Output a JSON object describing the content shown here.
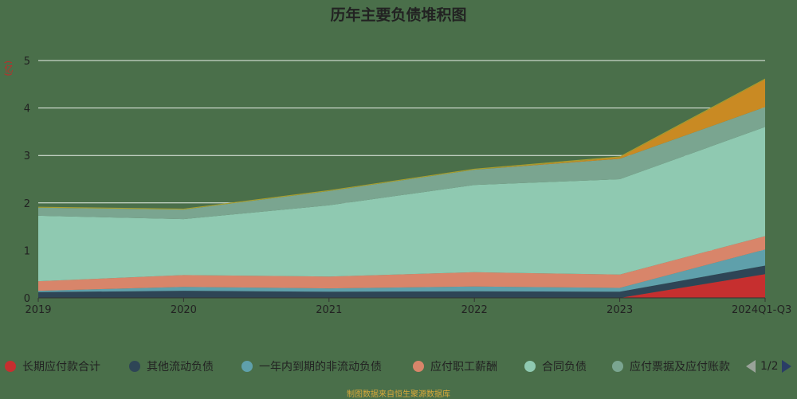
{
  "chart_data": {
    "type": "area",
    "title": "历年主要负债堆积图",
    "ylabel": "(亿)",
    "xlabel": "",
    "categories": [
      "2019",
      "2020",
      "2021",
      "2022",
      "2023",
      "2024Q1-Q3"
    ],
    "ylim": [
      0,
      5
    ],
    "yticks": [
      0,
      1,
      2,
      3,
      4,
      5
    ],
    "grid": true,
    "legend_position": "bottom",
    "stacked": true,
    "series": [
      {
        "name": "长期应付款合计",
        "color": "#c62f2f",
        "values": [
          0,
          0,
          0,
          0,
          0,
          0.5
        ]
      },
      {
        "name": "其他流动负债",
        "color": "#2e4556",
        "values": [
          0.12,
          0.15,
          0.13,
          0.14,
          0.13,
          0.18
        ]
      },
      {
        "name": "一年内到期的非流动负债",
        "color": "#5fa0ab",
        "values": [
          0.03,
          0.08,
          0.07,
          0.1,
          0.08,
          0.34
        ]
      },
      {
        "name": "应付职工薪酬",
        "color": "#d8856a",
        "values": [
          0.2,
          0.25,
          0.25,
          0.3,
          0.28,
          0.28
        ]
      },
      {
        "name": "合同负债",
        "color": "#8fc9b1",
        "values": [
          1.38,
          1.18,
          1.5,
          1.84,
          2.01,
          2.3
        ]
      },
      {
        "name": "应付票据及应付账款",
        "color": "#7aa590",
        "values": [
          0.17,
          0.2,
          0.3,
          0.32,
          0.43,
          0.42
        ]
      },
      {
        "name": "",
        "color": "#c98a23",
        "values": [
          0,
          0,
          0,
          0,
          0.03,
          0.58
        ]
      },
      {
        "name": "",
        "color": "#a89f2f",
        "values": [
          0.02,
          0.02,
          0.02,
          0.02,
          0.02,
          0.02
        ]
      }
    ]
  },
  "legend": {
    "items": [
      {
        "label": "长期应付款合计",
        "color": "#c62f2f"
      },
      {
        "label": "其他流动负债",
        "color": "#2e4556"
      },
      {
        "label": "一年内到期的非流动负债",
        "color": "#5fa0ab"
      },
      {
        "label": "应付职工薪酬",
        "color": "#d8856a"
      },
      {
        "label": "合同负债",
        "color": "#8fc9b1"
      },
      {
        "label": "应付票据及应付账款",
        "color": "#7aa590"
      }
    ],
    "page": "1/2"
  },
  "footnote": "制图数据来自恒生聚源数据库"
}
